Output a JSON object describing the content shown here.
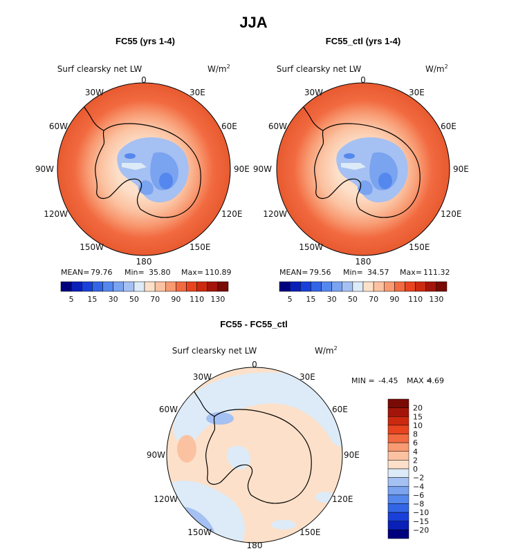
{
  "figure": {
    "title": "JJA",
    "variable_label": "Surf clearsky net LW",
    "units_label": "W/m",
    "units_exponent": "2",
    "longitude_labels": [
      "0",
      "30E",
      "60E",
      "90E",
      "120E",
      "150E",
      "180",
      "150W",
      "120W",
      "90W",
      "60W",
      "30W"
    ]
  },
  "chart_data": [
    {
      "type": "heatmap",
      "projection": "south polar stereographic",
      "title": "FC55 (yrs 1-4)",
      "stats": {
        "mean_label": "MEAN=",
        "mean": "79.76",
        "min_label": "Min=",
        "min": "35.80",
        "max_label": "Max=",
        "max": "110.89"
      },
      "colorbar": {
        "levels": [
          5,
          10,
          15,
          20,
          30,
          40,
          50,
          60,
          70,
          80,
          90,
          100,
          110,
          120,
          130
        ],
        "tick_labels": [
          "5",
          "15",
          "30",
          "50",
          "70",
          "90",
          "110",
          "130"
        ],
        "colors": [
          "#00007f",
          "#0a1fb8",
          "#1940d9",
          "#3366e6",
          "#5588ee",
          "#7aa3f0",
          "#a5c0f2",
          "#dcebf7",
          "#fde0c9",
          "#fbc2a1",
          "#f89a72",
          "#f26a40",
          "#e84420",
          "#cc2a10",
          "#a3150a",
          "#7a0a05"
        ]
      }
    },
    {
      "type": "heatmap",
      "projection": "south polar stereographic",
      "title": "FC55_ctl (yrs 1-4)",
      "stats": {
        "mean_label": "MEAN=",
        "mean": "79.56",
        "min_label": "Min=",
        "min": "34.57",
        "max_label": "Max=",
        "max": "111.32"
      },
      "colorbar": {
        "levels": [
          5,
          10,
          15,
          20,
          30,
          40,
          50,
          60,
          70,
          80,
          90,
          100,
          110,
          120,
          130
        ],
        "tick_labels": [
          "5",
          "15",
          "30",
          "50",
          "70",
          "90",
          "110",
          "130"
        ],
        "colors": [
          "#00007f",
          "#0a1fb8",
          "#1940d9",
          "#3366e6",
          "#5588ee",
          "#7aa3f0",
          "#a5c0f2",
          "#dcebf7",
          "#fde0c9",
          "#fbc2a1",
          "#f89a72",
          "#f26a40",
          "#e84420",
          "#cc2a10",
          "#a3150a",
          "#7a0a05"
        ]
      }
    },
    {
      "type": "heatmap",
      "projection": "south polar stereographic",
      "title": "FC55 - FC55_ctl",
      "stats": {
        "min_label": "MIN =",
        "min": "-4.45",
        "max_label": "MAX =",
        "max": "4.69"
      },
      "colorbar": {
        "tick_labels": [
          "20",
          "15",
          "10",
          "8",
          "6",
          "4",
          "2",
          "0",
          "−2",
          "−4",
          "−6",
          "−8",
          "−10",
          "−15",
          "−20"
        ],
        "colors": [
          "#7a0a05",
          "#a3150a",
          "#cc2a10",
          "#e84420",
          "#f26a40",
          "#f89a72",
          "#fbc2a1",
          "#fde0c9",
          "#dcebf7",
          "#a5c0f2",
          "#7aa3f0",
          "#5588ee",
          "#3366e6",
          "#1940d9",
          "#0a1fb8",
          "#00007f"
        ]
      }
    }
  ]
}
